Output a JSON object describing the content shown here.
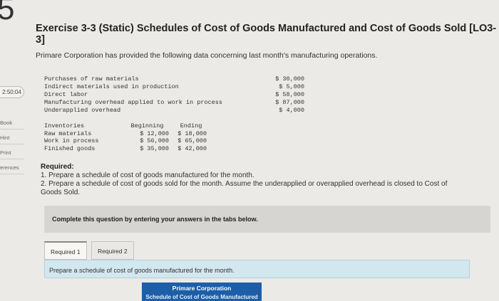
{
  "corner_number": "5",
  "sidebar": {
    "timer": "2:50:04",
    "items": [
      {
        "label": "Book"
      },
      {
        "label": "Hint"
      },
      {
        "label": "Print"
      },
      {
        "label": "erences"
      }
    ]
  },
  "exercise_title": "Exercise 3-3 (Static) Schedules of Cost of Goods Manufactured and Cost of Goods Sold [LO3-3]",
  "intro": "Primare Corporation has provided the following data concerning last month's manufacturing operations.",
  "data_rows": [
    {
      "label": "Purchases of raw materials",
      "value": "$ 30,000"
    },
    {
      "label": "Indirect materials used in production",
      "value": "$ 5,000"
    },
    {
      "label": "Direct labor",
      "value": "$ 58,000"
    },
    {
      "label": "Manufacturing overhead applied to work in process",
      "value": "$ 87,000"
    },
    {
      "label": "Underapplied overhead",
      "value": "$ 4,000"
    }
  ],
  "inventories": {
    "headers": [
      "Inventories",
      "Beginning",
      "Ending"
    ],
    "rows": [
      [
        "Raw materials",
        "$ 12,000",
        "$ 18,000"
      ],
      [
        "Work in process",
        "$ 56,000",
        "$ 65,000"
      ],
      [
        "Finished goods",
        "$ 35,000",
        "$ 42,000"
      ]
    ]
  },
  "required": {
    "title": "Required:",
    "items": [
      "1. Prepare a schedule of cost of goods manufactured for the month.",
      "2. Prepare a schedule of cost of goods sold for the month. Assume the underapplied or overapplied overhead is closed to Cost of",
      "Goods Sold."
    ]
  },
  "complete_instruction": "Complete this question by entering your answers in the tabs below.",
  "tabs": [
    "Required 1",
    "Required 2"
  ],
  "prepare_text": "Prepare a schedule of cost of goods manufactured for the month.",
  "schedule": {
    "company": "Primare Corporation",
    "title": "Schedule of Cost of Goods Manufactured"
  },
  "colors": {
    "page_bg": "#eceae6",
    "prepare_bar": "#d3e7ee",
    "schedule_header": "#1c5fa8"
  }
}
